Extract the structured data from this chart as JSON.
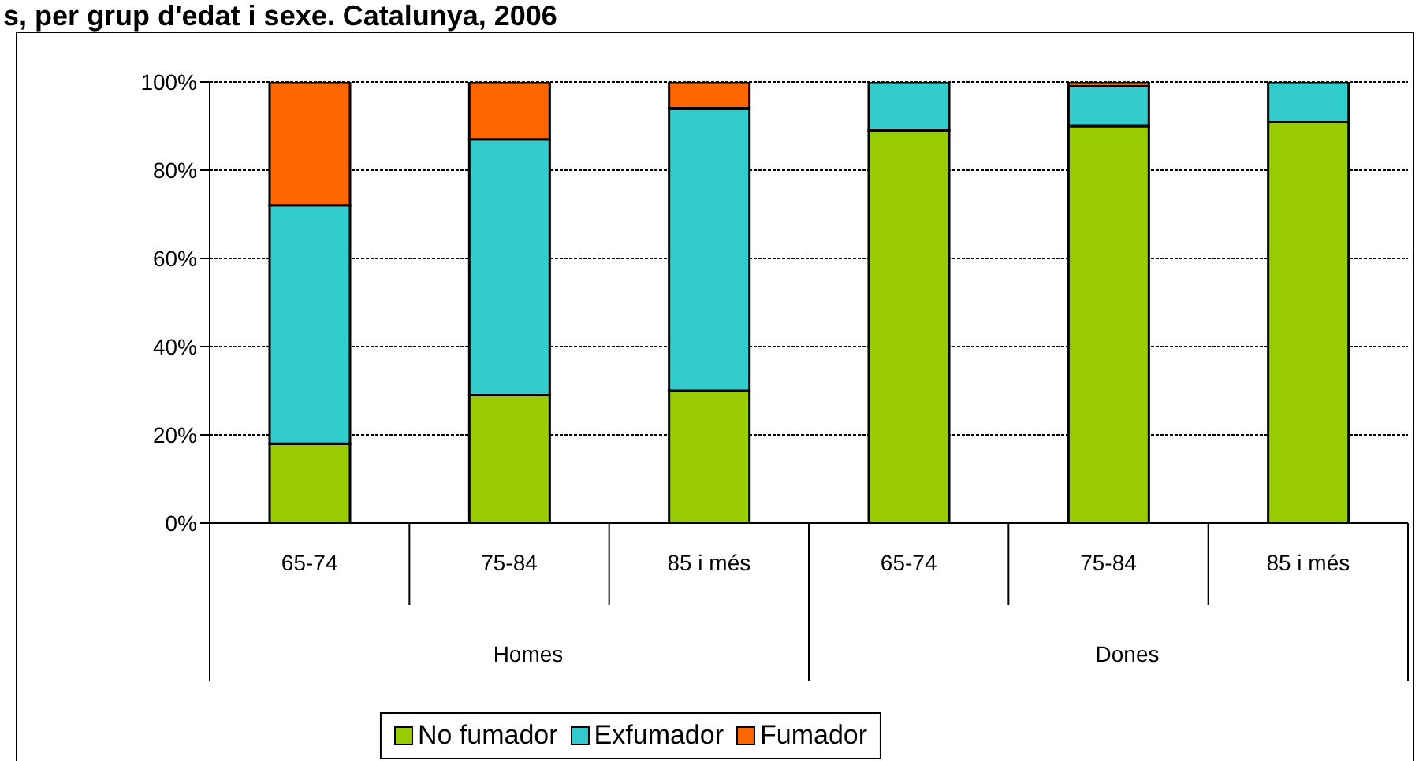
{
  "chart_data": {
    "type": "bar",
    "title": "s, per grup d'edat i sexe. Catalunya, 2006",
    "categories": [
      "65-74",
      "75-84",
      "85 i més",
      "65-74",
      "75-84",
      "85 i més"
    ],
    "stacked": true,
    "annotations": [
      "Homes",
      "Dones"
    ],
    "ylim": [
      0,
      100
    ],
    "yticks": [
      {
        "value": 0,
        "label": "0%"
      },
      {
        "value": 20,
        "label": "20%"
      },
      {
        "value": 40,
        "label": "40%"
      },
      {
        "value": 60,
        "label": "60%"
      },
      {
        "value": 80,
        "label": "80%"
      },
      {
        "value": 100,
        "label": "100%"
      }
    ],
    "grid": "y",
    "legend": "bottom",
    "series": [
      {
        "name": "No fumador",
        "color": "#99cc00",
        "values": [
          18,
          29,
          30,
          89,
          90,
          91
        ]
      },
      {
        "name": "Exfumador",
        "color": "#33cccc",
        "values": [
          54,
          58,
          64,
          11,
          9,
          9
        ]
      },
      {
        "name": "Fumador",
        "color": "#ff6600",
        "values": [
          28,
          13,
          6,
          0,
          1,
          0
        ]
      }
    ]
  }
}
